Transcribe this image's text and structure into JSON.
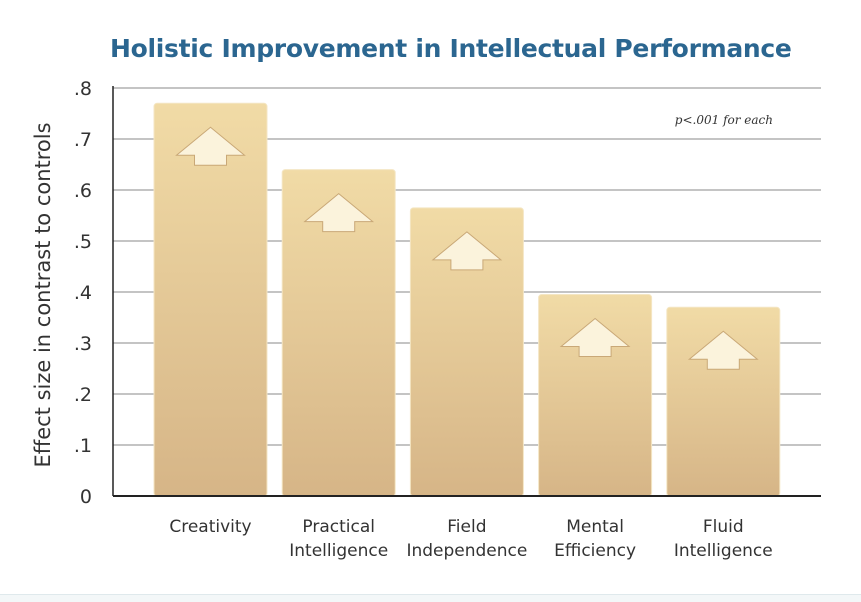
{
  "chart_data": {
    "type": "bar",
    "title": "Holistic Improvement in Intellectual Performance",
    "ylabel": "Effect size in contrast to controls",
    "xlabel": "",
    "categories": [
      [
        "Creativity"
      ],
      [
        "Practical",
        "Intelligence"
      ],
      [
        "Field",
        "Independence"
      ],
      [
        "Mental",
        "Efficiency"
      ],
      [
        "Fluid",
        "Intelligence"
      ]
    ],
    "values": [
      0.77,
      0.64,
      0.565,
      0.395,
      0.37
    ],
    "ylim": [
      0,
      0.8
    ],
    "yticks": [
      0,
      0.1,
      0.2,
      0.3,
      0.4,
      0.5,
      0.6,
      0.7,
      0.8
    ],
    "ytick_labels": [
      "0",
      ".1",
      ".2",
      ".3",
      ".4",
      ".5",
      ".6",
      ".7",
      ".8"
    ],
    "annotation": "p<.001 for each",
    "grid": true,
    "bar_marker": "up-arrow-icon",
    "colors": {
      "title": "#2b6690",
      "bar_top": "#f1dba6",
      "bar_bottom": "#d6b587",
      "arrow": "#fbf3dc",
      "grid": "#8a8a8a",
      "axis": "#222222"
    }
  }
}
